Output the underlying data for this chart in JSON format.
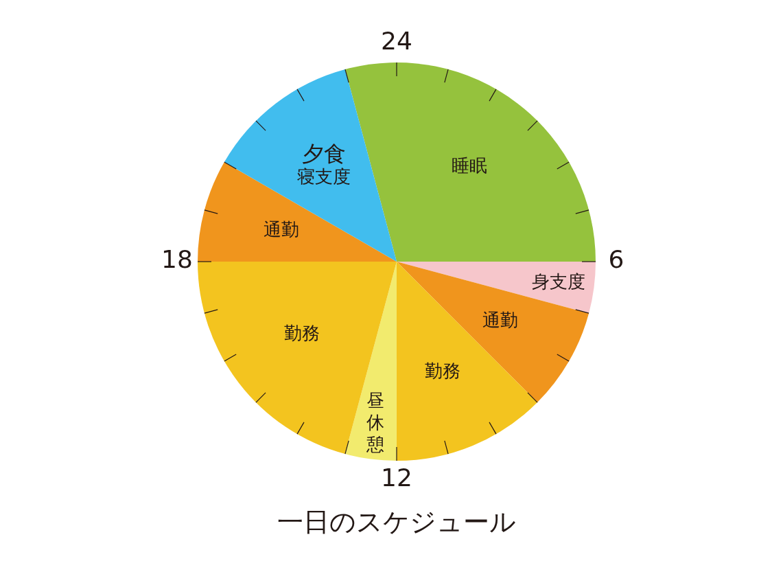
{
  "chart_data": {
    "type": "pie",
    "title": "一日のスケジュール",
    "categories": [
      "睡眠",
      "身支度",
      "通勤",
      "勤務",
      "昼休憩",
      "勤務",
      "通勤",
      "夕食寝支度"
    ],
    "values": [
      29.17,
      4.17,
      8.33,
      12.5,
      4.17,
      20.83,
      8.33,
      12.5
    ],
    "colors": [
      "#95c23d",
      "#f6c6cb",
      "#f0951d",
      "#f3c41f",
      "#f2eb6e",
      "#f3c41f",
      "#f0951d",
      "#41bdee"
    ],
    "annotations": [
      "24",
      "6",
      "12",
      "18"
    ]
  }
}
